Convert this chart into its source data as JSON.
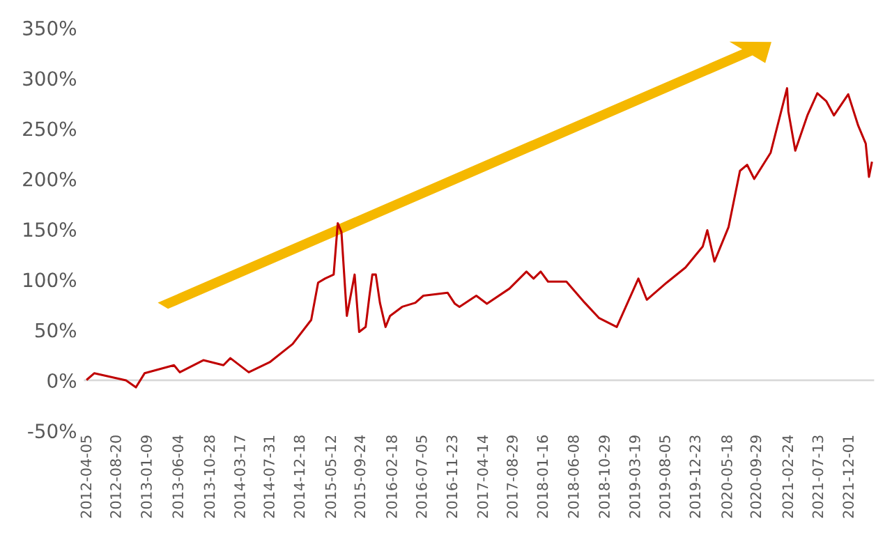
{
  "chart_data": {
    "type": "line",
    "x": [
      "2012-04-05",
      "2012-05-07",
      "2012-10-01",
      "2012-11-16",
      "2012-12-26",
      "2013-05-11",
      "2013-06-07",
      "2013-09-24",
      "2013-12-26",
      "2014-01-27",
      "2014-04-22",
      "2014-07-28",
      "2014-11-11",
      "2015-02-05",
      "2015-03-09",
      "2015-04-10",
      "2015-05-20",
      "2015-06-08",
      "2015-06-25",
      "2015-07-20",
      "2015-08-25",
      "2015-09-15",
      "2015-10-15",
      "2015-11-01",
      "2015-11-15",
      "2015-12-01",
      "2015-12-20",
      "2016-01-15",
      "2016-02-05",
      "2016-04-01",
      "2016-06-01",
      "2016-07-08",
      "2016-10-28",
      "2016-12-01",
      "2016-12-22",
      "2017-03-10",
      "2017-04-28",
      "2017-08-10",
      "2017-10-28",
      "2017-11-30",
      "2018-01-02",
      "2018-02-05",
      "2018-05-01",
      "2018-07-25",
      "2018-09-28",
      "2018-12-20",
      "2019-03-30",
      "2019-05-08",
      "2019-08-08",
      "2019-11-03",
      "2020-01-22",
      "2020-02-12",
      "2020-03-16",
      "2020-05-20",
      "2020-07-12",
      "2020-08-14",
      "2020-09-16",
      "2020-12-01",
      "2021-02-15",
      "2021-02-21",
      "2021-03-25",
      "2021-05-20",
      "2021-07-05",
      "2021-08-16",
      "2021-09-20",
      "2021-11-25",
      "2022-01-10",
      "2022-02-14",
      "2022-03-01",
      "2022-03-14"
    ],
    "series": [
      {
        "color": "#c00000",
        "values": [
          1,
          7,
          0,
          -7,
          7,
          15,
          8,
          20,
          15,
          22,
          8,
          18,
          36,
          60,
          97,
          101,
          105,
          156,
          147,
          64,
          105,
          48,
          53,
          83,
          105,
          105,
          77,
          53,
          64,
          73,
          77,
          84,
          87,
          76,
          73,
          84,
          76,
          91,
          108,
          101,
          108,
          98,
          98,
          77,
          62,
          53,
          101,
          80,
          97,
          112,
          133,
          149,
          118,
          152,
          208,
          214,
          200,
          226,
          290,
          267,
          228,
          263,
          285,
          277,
          263,
          284,
          253,
          235,
          202,
          216
        ]
      }
    ],
    "xlim": [
      "2012-03-20",
      "2022-03-25"
    ],
    "xticks": [
      {
        "value": "2012-04-05",
        "label": "2012-04-05"
      },
      {
        "value": "2012-08-20",
        "label": "2012-08-20"
      },
      {
        "value": "2013-01-09",
        "label": "2013-01-09"
      },
      {
        "value": "2013-06-04",
        "label": "2013-06-04"
      },
      {
        "value": "2013-10-28",
        "label": "2013-10-28"
      },
      {
        "value": "2014-03-17",
        "label": "2014-03-17"
      },
      {
        "value": "2014-07-31",
        "label": "2014-07-31"
      },
      {
        "value": "2014-12-18",
        "label": "2014-12-18"
      },
      {
        "value": "2015-05-12",
        "label": "2015-05-12"
      },
      {
        "value": "2015-09-24",
        "label": "2015-09-24"
      },
      {
        "value": "2016-02-18",
        "label": "2016-02-18"
      },
      {
        "value": "2016-07-05",
        "label": "2016-07-05"
      },
      {
        "value": "2016-11-23",
        "label": "2016-11-23"
      },
      {
        "value": "2017-04-14",
        "label": "2017-04-14"
      },
      {
        "value": "2017-08-29",
        "label": "2017-08-29"
      },
      {
        "value": "2018-01-16",
        "label": "2018-01-16"
      },
      {
        "value": "2018-06-08",
        "label": "2018-06-08"
      },
      {
        "value": "2018-10-29",
        "label": "2018-10-29"
      },
      {
        "value": "2019-03-19",
        "label": "2019-03-19"
      },
      {
        "value": "2019-08-05",
        "label": "2019-08-05"
      },
      {
        "value": "2019-12-23",
        "label": "2019-12-23"
      },
      {
        "value": "2020-05-18",
        "label": "2020-05-18"
      },
      {
        "value": "2020-09-29",
        "label": "2020-09-29"
      },
      {
        "value": "2021-02-24",
        "label": "2021-02-24"
      },
      {
        "value": "2021-07-13",
        "label": "2021-07-13"
      },
      {
        "value": "2021-12-01",
        "label": "2021-12-01"
      }
    ],
    "ylim": [
      -50,
      350
    ],
    "yticks": [
      {
        "value": -50,
        "label": "-50%"
      },
      {
        "value": 0,
        "label": "0%"
      },
      {
        "value": 50,
        "label": "50%"
      },
      {
        "value": 100,
        "label": "100%"
      },
      {
        "value": 150,
        "label": "150%"
      },
      {
        "value": 200,
        "label": "200%"
      },
      {
        "value": 250,
        "label": "250%"
      },
      {
        "value": 300,
        "label": "300%"
      },
      {
        "value": 350,
        "label": "350%"
      }
    ],
    "ref_lines": [
      {
        "axis": "y",
        "value": 0,
        "color": "#d9d9d9"
      }
    ],
    "grid": false,
    "legend": false,
    "marker": "none",
    "line_style": "solid"
  }
}
